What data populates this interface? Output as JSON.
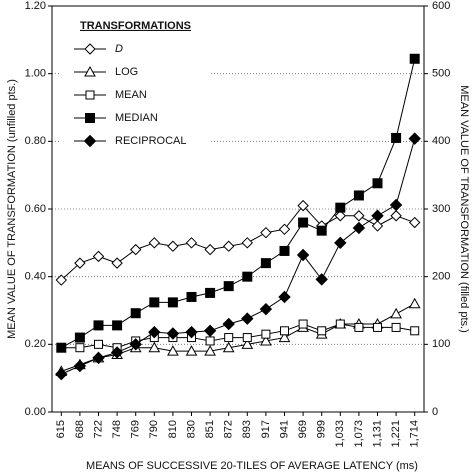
{
  "chart_data": {
    "type": "line",
    "xlabel": "MEANS OF SUCCESSIVE 20-TILES OF AVERAGE LATENCY (ms)",
    "ylabel": "MEAN VALUE OF TRANSFORMATION (unfilled pts.)",
    "y2label": "MEAN VALUE OF TRANSFORMATION (filled pts.)",
    "legend_title": "TRANSFORMATIONS",
    "legend": "upper left",
    "grid": true,
    "categories": [
      "615",
      "688",
      "722",
      "748",
      "769",
      "790",
      "810",
      "830",
      "851",
      "872",
      "893",
      "917",
      "941",
      "969",
      "999",
      "1,033",
      "1,073",
      "1,131",
      "1,221",
      "1,714"
    ],
    "ylim": [
      0,
      1.2
    ],
    "yticks": [
      {
        "value": 0,
        "label": "0.00"
      },
      {
        "value": 0.2,
        "label": "0.20"
      },
      {
        "value": 0.4,
        "label": "0.40"
      },
      {
        "value": 0.6,
        "label": "0.60"
      },
      {
        "value": 0.8,
        "label": "0.80"
      },
      {
        "value": 1.0,
        "label": "1.00"
      },
      {
        "value": 1.2,
        "label": "1.20"
      }
    ],
    "y2lim": [
      0,
      600
    ],
    "y2ticks": [
      0,
      100,
      200,
      300,
      400,
      500,
      600
    ],
    "series": [
      {
        "name": "D",
        "color": "#000000",
        "marker": "diamond",
        "filled": false,
        "values": [
          0.39,
          0.44,
          0.46,
          0.44,
          0.48,
          0.5,
          0.49,
          0.5,
          0.48,
          0.49,
          0.5,
          0.53,
          0.54,
          0.61,
          0.55,
          0.58,
          0.58,
          0.55,
          0.58,
          0.56
        ]
      },
      {
        "name": "LOG",
        "color": "#000000",
        "marker": "triangle",
        "filled": false,
        "values": [
          0.12,
          0.14,
          0.16,
          0.17,
          0.19,
          0.19,
          0.18,
          0.18,
          0.18,
          0.19,
          0.2,
          0.21,
          0.22,
          0.25,
          0.23,
          0.26,
          0.26,
          0.26,
          0.29,
          0.32
        ]
      },
      {
        "name": "MEAN",
        "color": "#000000",
        "marker": "square",
        "filled": false,
        "values": [
          0.19,
          0.19,
          0.2,
          0.19,
          0.21,
          0.22,
          0.22,
          0.22,
          0.21,
          0.22,
          0.22,
          0.23,
          0.24,
          0.26,
          0.24,
          0.26,
          0.25,
          0.25,
          0.25,
          0.24
        ]
      },
      {
        "name": "MEDIAN",
        "color": "#000000",
        "marker": "square",
        "filled": true,
        "axis": "y2",
        "values": [
          95,
          110,
          128,
          128,
          146,
          162,
          162,
          170,
          176,
          186,
          200,
          220,
          238,
          280,
          268,
          302,
          320,
          338,
          405,
          522
        ]
      },
      {
        "name": "RECIPROCAL",
        "color": "#000000",
        "marker": "diamond",
        "filled": true,
        "axis": "y2",
        "values": [
          56,
          68,
          80,
          88,
          100,
          118,
          116,
          118,
          120,
          130,
          138,
          152,
          170,
          232,
          196,
          250,
          272,
          290,
          306,
          404
        ]
      }
    ]
  }
}
